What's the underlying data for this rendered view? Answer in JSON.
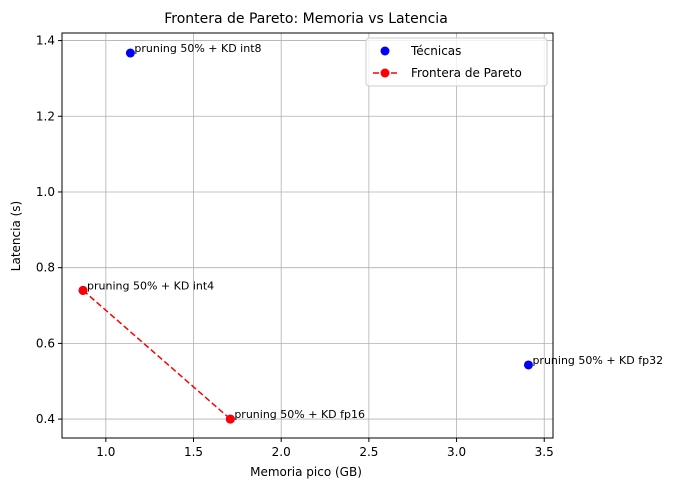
{
  "chart_data": {
    "type": "scatter",
    "title": "Frontera de Pareto: Memoria vs Latencia",
    "xlabel": "Memoria pico (GB)",
    "ylabel": "Latencia (s)",
    "xlim": [
      0.75,
      3.55
    ],
    "ylim": [
      0.35,
      1.42
    ],
    "xticks": [
      1.0,
      1.5,
      2.0,
      2.5,
      3.0,
      3.5
    ],
    "yticks": [
      0.4,
      0.6,
      0.8,
      1.0,
      1.2,
      1.4
    ],
    "xtick_labels": [
      "1.0",
      "1.5",
      "2.0",
      "2.5",
      "3.0",
      "3.5"
    ],
    "ytick_labels": [
      "0.4",
      "0.6",
      "0.8",
      "1.0",
      "1.2",
      "1.4"
    ],
    "grid": true,
    "legend_position": "top-right",
    "series": [
      {
        "name": "Técnicas",
        "color": "#0000ff",
        "style": "markers",
        "points": [
          {
            "x": 1.14,
            "y": 1.367,
            "label": "pruning 50% + KD int8"
          },
          {
            "x": 0.87,
            "y": 0.74,
            "label": "pruning 50% + KD int4"
          },
          {
            "x": 3.41,
            "y": 0.543,
            "label": "pruning 50% + KD fp32"
          },
          {
            "x": 1.71,
            "y": 0.4,
            "label": "pruning 50% + KD fp16"
          }
        ]
      },
      {
        "name": "Frontera de Pareto",
        "color": "#ff0000",
        "style": "dashed-line-markers",
        "points": [
          {
            "x": 0.87,
            "y": 0.74
          },
          {
            "x": 1.71,
            "y": 0.4
          }
        ]
      }
    ]
  }
}
